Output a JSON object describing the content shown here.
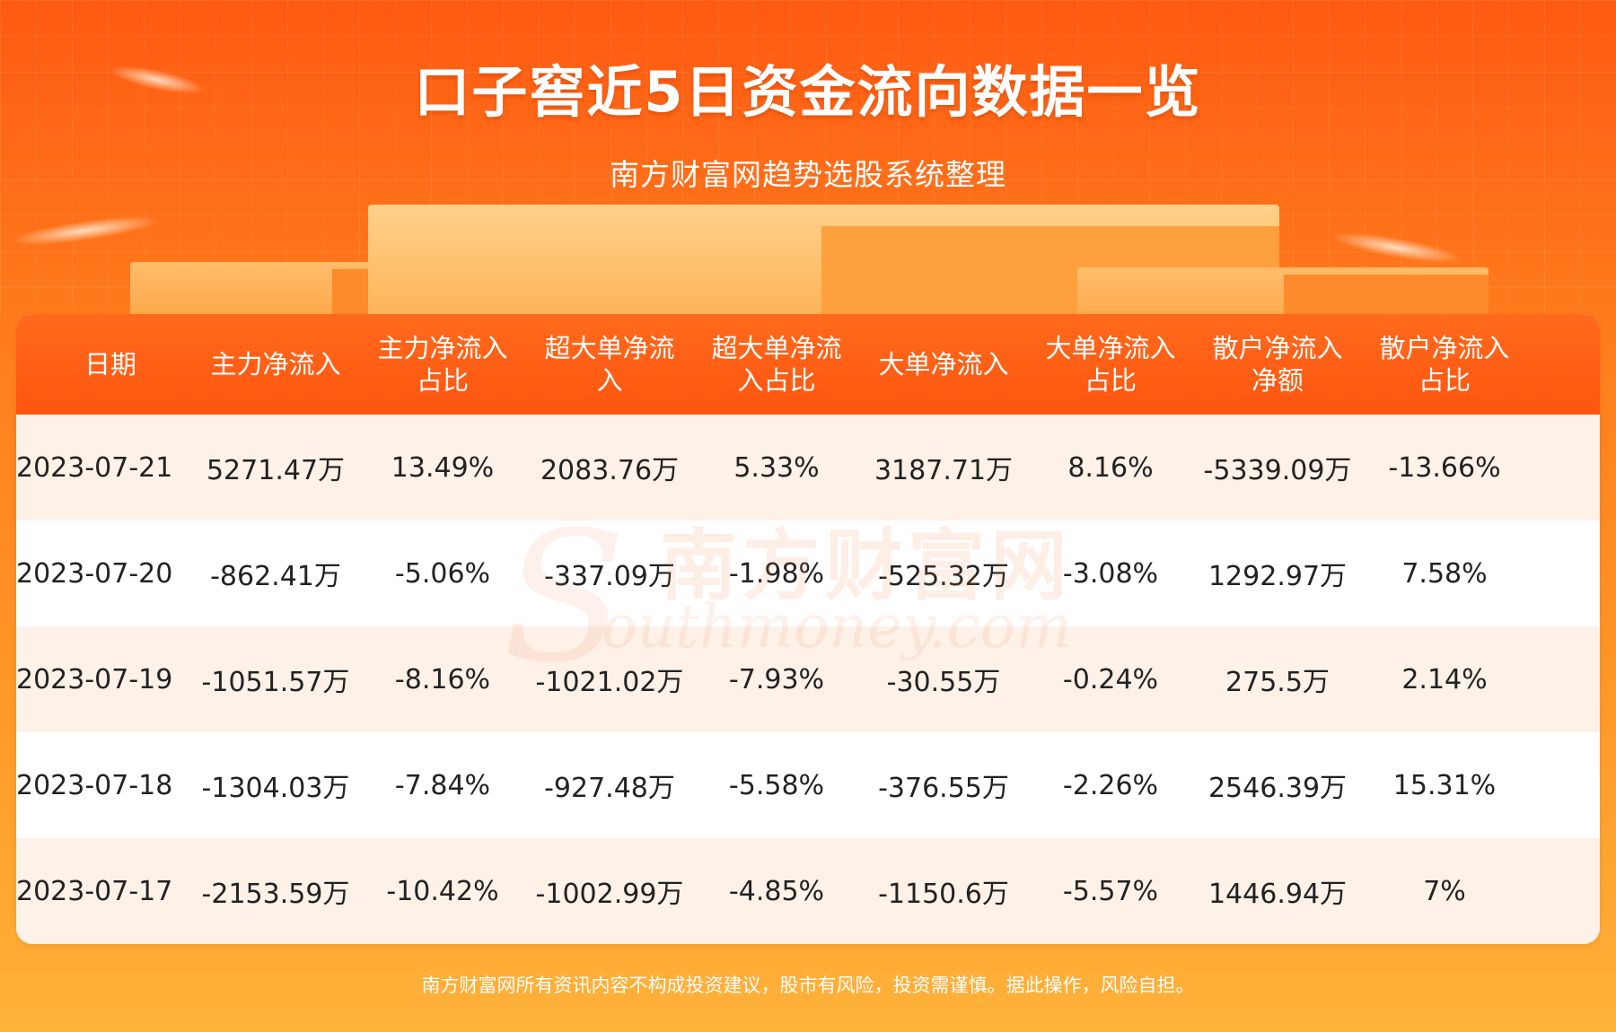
{
  "header": {
    "title": "口子窖近5日资金流向数据一览",
    "subtitle": "南方财富网趋势选股系统整理"
  },
  "table": {
    "columns": [
      "日期",
      "主力净流入",
      "主力净流入\n占比",
      "超大单净流\n入",
      "超大单净流\n入占比",
      "大单净流入",
      "大单净流入\n占比",
      "散户净流入\n净额",
      "散户净流入\n占比"
    ],
    "rows": [
      [
        "2023-07-21",
        "5271.47万",
        "13.49%",
        "2083.76万",
        "5.33%",
        "3187.71万",
        "8.16%",
        "-5339.09万",
        "-13.66%"
      ],
      [
        "2023-07-20",
        "-862.41万",
        "-5.06%",
        "-337.09万",
        "-1.98%",
        "-525.32万",
        "-3.08%",
        "1292.97万",
        "7.58%"
      ],
      [
        "2023-07-19",
        "-1051.57万",
        "-8.16%",
        "-1021.02万",
        "-7.93%",
        "-30.55万",
        "-0.24%",
        "275.5万",
        "2.14%"
      ],
      [
        "2023-07-18",
        "-1304.03万",
        "-7.84%",
        "-927.48万",
        "-5.58%",
        "-376.55万",
        "-2.26%",
        "2546.39万",
        "15.31%"
      ],
      [
        "2023-07-17",
        "-2153.59万",
        "-10.42%",
        "-1002.99万",
        "-4.85%",
        "-1150.6万",
        "-5.57%",
        "1446.94万",
        "7%"
      ]
    ]
  },
  "watermark": {
    "cn": "南方财富网",
    "en": "outhmoney.com",
    "s": "S"
  },
  "footer": {
    "disclaimer": "南方财富网所有资讯内容不构成投资建议，股市有风险，投资需谨慎。据此操作，风险自担。"
  },
  "colors": {
    "header_bg": "#ff5510",
    "row_alt": "#fdf1e8",
    "page_bg": "#ff7a1c"
  }
}
